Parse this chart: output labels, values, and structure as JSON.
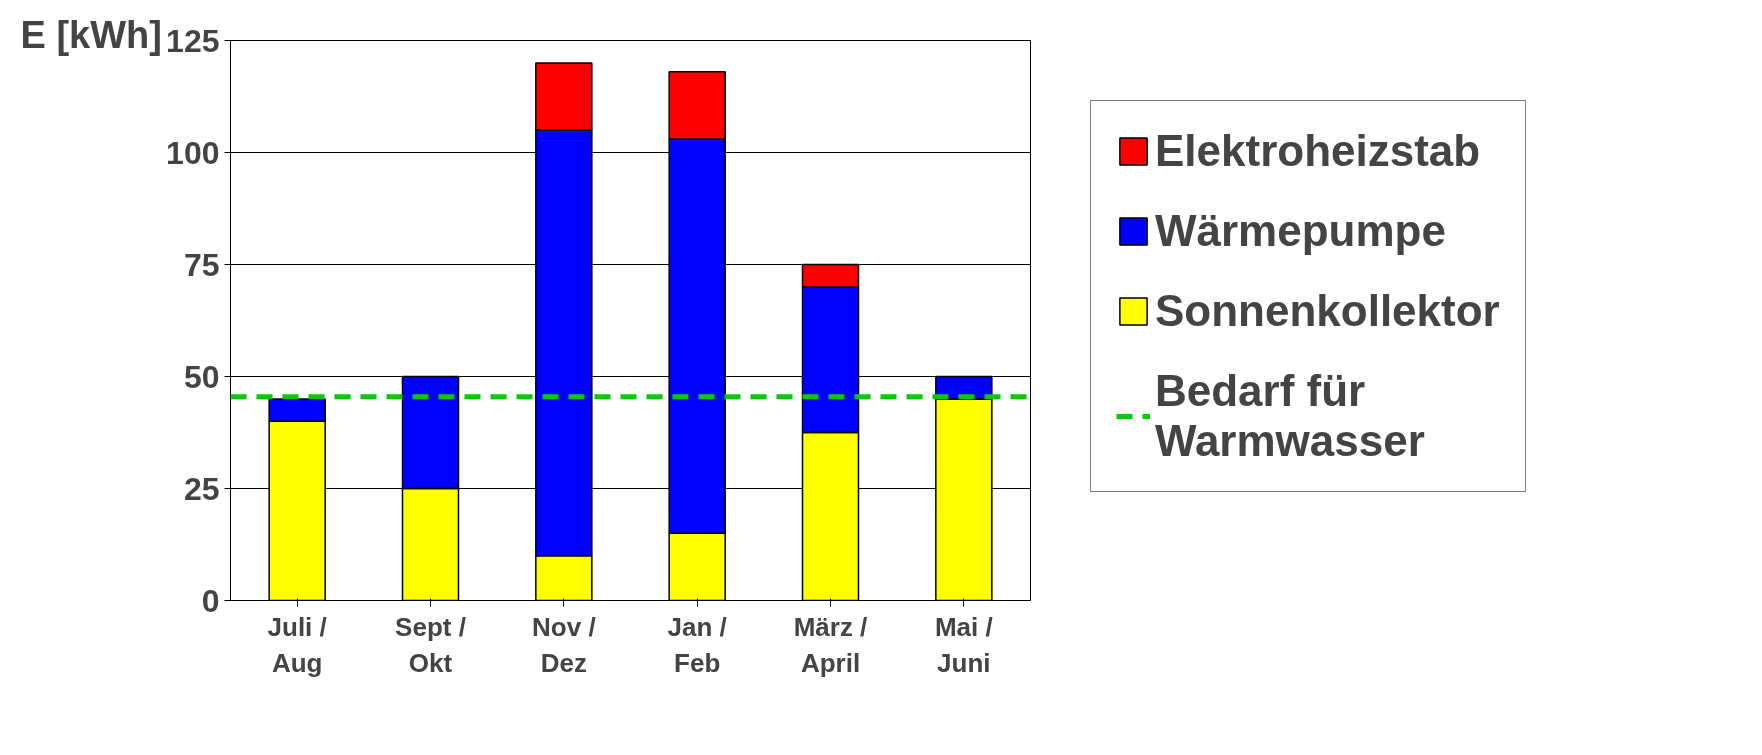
{
  "chart_data": {
    "type": "bar",
    "stacked": true,
    "ylabel": "E [kWh]",
    "categories": [
      "Juli / Aug",
      "Sept / Okt",
      "Nov / Dez",
      "Jan / Feb",
      "März / April",
      "Mai / Juni"
    ],
    "series": [
      {
        "name": "Sonnenkollektor",
        "color": "#ffff00",
        "values": [
          40,
          25,
          10,
          15,
          37.5,
          45
        ]
      },
      {
        "name": "Wärmepumpe",
        "color": "#0000ff",
        "values": [
          5,
          25,
          95,
          88,
          32.5,
          5
        ]
      },
      {
        "name": "Elektroheizstab",
        "color": "#ff0000",
        "values": [
          null,
          null,
          15,
          15,
          5,
          null
        ]
      }
    ],
    "ref_lines": [
      {
        "axis": "y",
        "value": 45.5,
        "label": "Bedarf für Warmwasser",
        "color": "#00cc00",
        "line_style": "dashed"
      }
    ],
    "ylim": [
      0,
      125
    ],
    "yticks": [
      0,
      25,
      50,
      75,
      100,
      125
    ],
    "grid": "y",
    "legend": "right"
  }
}
